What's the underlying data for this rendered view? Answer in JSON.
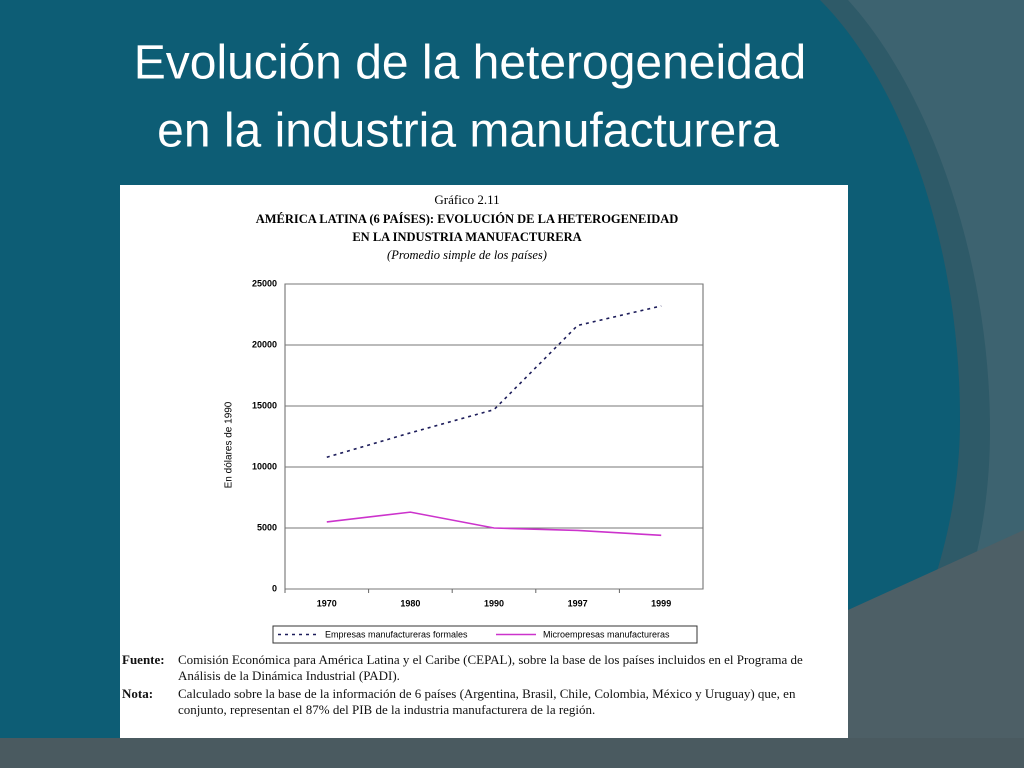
{
  "slide": {
    "title_lines": [
      "Evolución de la heterogeneidad",
      "en la industria manufacturera"
    ]
  },
  "chart_data": {
    "type": "line",
    "heading": "Gráfico 2.11",
    "title_lines": [
      "AMÉRICA LATINA (6 PAÍSES): EVOLUCIÓN DE LA HETEROGENEIDAD",
      "EN LA INDUSTRIA MANUFACTURERA"
    ],
    "subtitle": "(Promedio simple de los países)",
    "ylabel": "En dólares de 1990",
    "categories": [
      "1970",
      "1980",
      "1990",
      "1997",
      "1999"
    ],
    "series": [
      {
        "name": "Empresas manufactureras formales",
        "color": "#1c1c5a",
        "dash": "3,4",
        "values": [
          10800,
          12800,
          14700,
          21600,
          23200
        ]
      },
      {
        "name": "Microempresas manufactureras",
        "color": "#cc33cc",
        "values": [
          5500,
          6300,
          5000,
          4800,
          4400
        ]
      }
    ],
    "ylim": [
      0,
      25000
    ],
    "yticks": [
      0,
      5000,
      10000,
      15000,
      20000,
      25000
    ],
    "grid": true,
    "legend_position": "bottom"
  },
  "notes": [
    {
      "label": "Fuente",
      "text": "Comisión Económica para América Latina y el Caribe (CEPAL), sobre la base de los países incluidos en el Programa de Análisis de la Dinámica Industrial (PADI)."
    },
    {
      "label": "Nota",
      "text": "Calculado sobre la base de la información de 6 países (Argentina, Brasil, Chile, Colombia, México y Uruguay) que, en conjunto, representan el 87% del PIB de la industria manufacturera de la región."
    }
  ]
}
